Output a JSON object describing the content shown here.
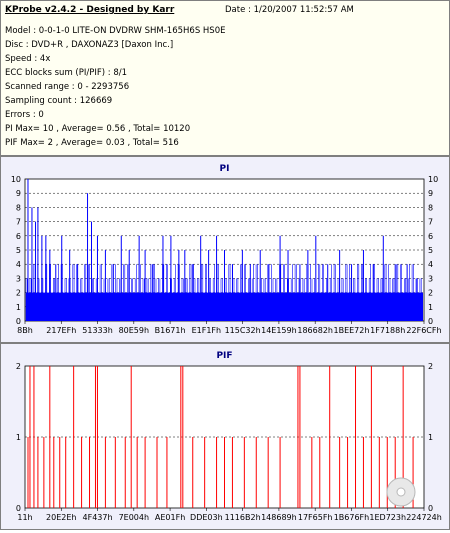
{
  "header": {
    "title": "KProbe v2.4.2 - Designed by Karr",
    "date": "Date : 1/20/2007 11:52:57 AM",
    "lines": [
      "Model : 0-0-1-0 LITE-ON DVDRW SHM-165H6S HS0E",
      "Disc : DVD+R , DAXONAZ3 [Daxon Inc.]",
      "Speed : 4x",
      "ECC blocks sum (PI/PIF) : 8/1",
      "Scanned range : 0 - 2293756",
      "Sampling count : 126669",
      "Errors : 0",
      "PI Max= 10 , Average= 0.56 , Total= 10120",
      "PIF Max= 2 , Average= 0.03 , Total= 516"
    ]
  },
  "chart_data": [
    {
      "type": "bar",
      "title": "PI",
      "x_tick_labels": [
        "8Bh",
        "217EFh",
        "51333h",
        "80E59h",
        "B1671h",
        "E1F1Fh",
        "115C32h",
        "14E159h",
        "186682h",
        "1BEE72h",
        "1F7188h",
        "22F6CFh"
      ],
      "ylim": [
        0,
        10
      ],
      "y_ticks": [
        0,
        1,
        2,
        3,
        4,
        5,
        6,
        7,
        8,
        9,
        10
      ],
      "bar_color": "#0000ff",
      "baseline_value": 2,
      "band_values": [
        3,
        4
      ],
      "spikes": [
        {
          "x": 0.005,
          "value": 10
        },
        {
          "x": 0.015,
          "value": 8
        },
        {
          "x": 0.024,
          "value": 7
        },
        {
          "x": 0.03,
          "value": 8
        },
        {
          "x": 0.04,
          "value": 6
        },
        {
          "x": 0.05,
          "value": 6
        },
        {
          "x": 0.06,
          "value": 5
        },
        {
          "x": 0.075,
          "value": 4
        },
        {
          "x": 0.09,
          "value": 6
        },
        {
          "x": 0.11,
          "value": 5
        },
        {
          "x": 0.13,
          "value": 4
        },
        {
          "x": 0.155,
          "value": 9
        },
        {
          "x": 0.165,
          "value": 7
        },
        {
          "x": 0.18,
          "value": 6
        },
        {
          "x": 0.2,
          "value": 5
        },
        {
          "x": 0.22,
          "value": 4
        },
        {
          "x": 0.24,
          "value": 6
        },
        {
          "x": 0.26,
          "value": 5
        },
        {
          "x": 0.285,
          "value": 6
        },
        {
          "x": 0.3,
          "value": 5
        },
        {
          "x": 0.32,
          "value": 4
        },
        {
          "x": 0.345,
          "value": 6
        },
        {
          "x": 0.365,
          "value": 6
        },
        {
          "x": 0.385,
          "value": 5
        },
        {
          "x": 0.4,
          "value": 5
        },
        {
          "x": 0.42,
          "value": 4
        },
        {
          "x": 0.44,
          "value": 6
        },
        {
          "x": 0.46,
          "value": 5
        },
        {
          "x": 0.48,
          "value": 6
        },
        {
          "x": 0.5,
          "value": 5
        },
        {
          "x": 0.52,
          "value": 4
        },
        {
          "x": 0.545,
          "value": 5
        },
        {
          "x": 0.565,
          "value": 4
        },
        {
          "x": 0.59,
          "value": 5
        },
        {
          "x": 0.61,
          "value": 4
        },
        {
          "x": 0.64,
          "value": 6
        },
        {
          "x": 0.66,
          "value": 5
        },
        {
          "x": 0.69,
          "value": 4
        },
        {
          "x": 0.71,
          "value": 5
        },
        {
          "x": 0.73,
          "value": 6
        },
        {
          "x": 0.76,
          "value": 4
        },
        {
          "x": 0.79,
          "value": 5
        },
        {
          "x": 0.82,
          "value": 4
        },
        {
          "x": 0.85,
          "value": 5
        },
        {
          "x": 0.875,
          "value": 4
        },
        {
          "x": 0.9,
          "value": 6
        },
        {
          "x": 0.93,
          "value": 4
        },
        {
          "x": 0.96,
          "value": 4
        },
        {
          "x": 0.985,
          "value": 3
        }
      ]
    },
    {
      "type": "bar",
      "title": "PIF",
      "x_tick_labels": [
        "11h",
        "20E2Eh",
        "4F437h",
        "7E004h",
        "AE01Fh",
        "DDE03h",
        "1116B2h",
        "148689h",
        "17F65Fh",
        "1B676Fh",
        "1ED723h",
        "224724h"
      ],
      "ylim": [
        0,
        2
      ],
      "y_ticks": [
        0,
        1,
        2
      ],
      "bar_color": "#ff0000",
      "spikes": [
        {
          "x": 0.005,
          "value": 1
        },
        {
          "x": 0.01,
          "value": 2
        },
        {
          "x": 0.02,
          "value": 2
        },
        {
          "x": 0.03,
          "value": 1
        },
        {
          "x": 0.045,
          "value": 1
        },
        {
          "x": 0.06,
          "value": 2
        },
        {
          "x": 0.07,
          "value": 1
        },
        {
          "x": 0.085,
          "value": 1
        },
        {
          "x": 0.1,
          "value": 1
        },
        {
          "x": 0.12,
          "value": 2
        },
        {
          "x": 0.14,
          "value": 1
        },
        {
          "x": 0.16,
          "value": 1
        },
        {
          "x": 0.175,
          "value": 2
        },
        {
          "x": 0.18,
          "value": 2
        },
        {
          "x": 0.2,
          "value": 1
        },
        {
          "x": 0.225,
          "value": 1
        },
        {
          "x": 0.25,
          "value": 1
        },
        {
          "x": 0.265,
          "value": 2
        },
        {
          "x": 0.28,
          "value": 1
        },
        {
          "x": 0.3,
          "value": 1
        },
        {
          "x": 0.33,
          "value": 1
        },
        {
          "x": 0.355,
          "value": 1
        },
        {
          "x": 0.39,
          "value": 2
        },
        {
          "x": 0.395,
          "value": 2
        },
        {
          "x": 0.42,
          "value": 1
        },
        {
          "x": 0.45,
          "value": 1
        },
        {
          "x": 0.48,
          "value": 1
        },
        {
          "x": 0.5,
          "value": 1
        },
        {
          "x": 0.52,
          "value": 1
        },
        {
          "x": 0.55,
          "value": 1
        },
        {
          "x": 0.58,
          "value": 1
        },
        {
          "x": 0.61,
          "value": 1
        },
        {
          "x": 0.64,
          "value": 1
        },
        {
          "x": 0.685,
          "value": 2
        },
        {
          "x": 0.69,
          "value": 2
        },
        {
          "x": 0.72,
          "value": 1
        },
        {
          "x": 0.74,
          "value": 1
        },
        {
          "x": 0.765,
          "value": 2
        },
        {
          "x": 0.79,
          "value": 1
        },
        {
          "x": 0.81,
          "value": 1
        },
        {
          "x": 0.83,
          "value": 2
        },
        {
          "x": 0.85,
          "value": 1
        },
        {
          "x": 0.87,
          "value": 2
        },
        {
          "x": 0.89,
          "value": 1
        },
        {
          "x": 0.91,
          "value": 1
        },
        {
          "x": 0.93,
          "value": 1
        },
        {
          "x": 0.95,
          "value": 2
        },
        {
          "x": 0.975,
          "value": 1
        }
      ]
    }
  ]
}
